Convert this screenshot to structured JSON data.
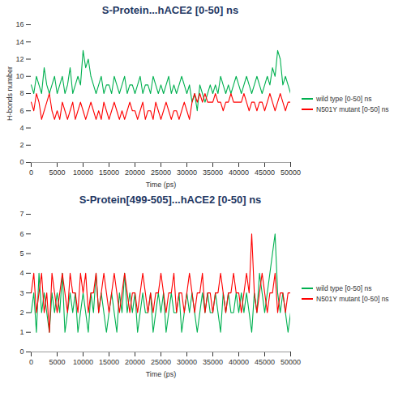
{
  "chart_data": [
    {
      "type": "line",
      "title": "S-Protein...hACE2 [0-50] ns",
      "x_label": "Time (ps)",
      "y_label": "H-bonds number",
      "x": [
        0,
        500,
        1000,
        1500,
        2000,
        2500,
        3000,
        3500,
        4000,
        4500,
        5000,
        5500,
        6000,
        6500,
        7000,
        7500,
        8000,
        8500,
        9000,
        9500,
        10000,
        10500,
        11000,
        11500,
        12000,
        12500,
        13000,
        13500,
        14000,
        14500,
        15000,
        15500,
        16000,
        16500,
        17000,
        17500,
        18000,
        18500,
        19000,
        19500,
        20000,
        20500,
        21000,
        21500,
        22000,
        22500,
        23000,
        23500,
        24000,
        24500,
        25000,
        25500,
        26000,
        26500,
        27000,
        27500,
        28000,
        28500,
        29000,
        29500,
        30000,
        30500,
        31000,
        31500,
        32000,
        32500,
        33000,
        33500,
        34000,
        34500,
        35000,
        35500,
        36000,
        36500,
        37000,
        37500,
        38000,
        38500,
        39000,
        39500,
        40000,
        40500,
        41000,
        41500,
        42000,
        42500,
        43000,
        43500,
        44000,
        44500,
        45000,
        45500,
        46000,
        46500,
        47000,
        47500,
        48000,
        48500,
        49000,
        49500,
        50000
      ],
      "series": [
        {
          "name": "wild type [0-50] ns",
          "color": "#00b050",
          "values": [
            9,
            8,
            10,
            9,
            8,
            11,
            9,
            8,
            9,
            10,
            8,
            9,
            10,
            8,
            9,
            11,
            8,
            9,
            10,
            9,
            13,
            11,
            12,
            10,
            9,
            8,
            9,
            10,
            8,
            9,
            9,
            8,
            10,
            9,
            8,
            9,
            10,
            8,
            9,
            9,
            8,
            9,
            10,
            8,
            9,
            9,
            8,
            10,
            9,
            8,
            9,
            8,
            9,
            10,
            8,
            9,
            8,
            9,
            10,
            9,
            8,
            9,
            7,
            8,
            6,
            9,
            8,
            7,
            8,
            9,
            8,
            9,
            8,
            10,
            9,
            8,
            9,
            8,
            9,
            10,
            9,
            8,
            9,
            10,
            9,
            8,
            9,
            10,
            9,
            8,
            9,
            10,
            9,
            11,
            10,
            13,
            12,
            9,
            10,
            9,
            8
          ]
        },
        {
          "name": "N501Y mutant [0-50] ns",
          "color": "#ff0000",
          "values": [
            7,
            6,
            8,
            7,
            5,
            6,
            7,
            8,
            6,
            5,
            6,
            5,
            7,
            6,
            5,
            6,
            7,
            5,
            6,
            7,
            6,
            5,
            6,
            7,
            6,
            5,
            6,
            5,
            7,
            6,
            5,
            6,
            7,
            6,
            5,
            6,
            5,
            6,
            7,
            6,
            6,
            5,
            6,
            7,
            5,
            6,
            6,
            5,
            7,
            6,
            5,
            6,
            7,
            6,
            5,
            6,
            6,
            5,
            6,
            7,
            6,
            5,
            7,
            8,
            7,
            8,
            7,
            8,
            7,
            7,
            7,
            8,
            7,
            7,
            6,
            7,
            7,
            8,
            7,
            7,
            7,
            7,
            8,
            7,
            6,
            7,
            7,
            6,
            7,
            7,
            6,
            7,
            8,
            7,
            6,
            7,
            8,
            7,
            6,
            7,
            7
          ]
        }
      ],
      "xlim": [
        0,
        50000
      ],
      "xticks": [
        0,
        5000,
        10000,
        15000,
        20000,
        25000,
        30000,
        35000,
        40000,
        45000,
        50000
      ],
      "ylim": [
        0,
        16
      ],
      "yticks": [
        0,
        2,
        4,
        6,
        8,
        10,
        12,
        14,
        16
      ],
      "grid": false,
      "legend": "right"
    },
    {
      "type": "line",
      "title": "S-Protein[499-505]...hACE2 [0-50] ns",
      "x_label": "Time (ps)",
      "x": [
        0,
        500,
        1000,
        1500,
        2000,
        2500,
        3000,
        3500,
        4000,
        4500,
        5000,
        5500,
        6000,
        6500,
        7000,
        7500,
        8000,
        8500,
        9000,
        9500,
        10000,
        10500,
        11000,
        11500,
        12000,
        12500,
        13000,
        13500,
        14000,
        14500,
        15000,
        15500,
        16000,
        16500,
        17000,
        17500,
        18000,
        18500,
        19000,
        19500,
        20000,
        20500,
        21000,
        21500,
        22000,
        22500,
        23000,
        23500,
        24000,
        24500,
        25000,
        25500,
        26000,
        26500,
        27000,
        27500,
        28000,
        28500,
        29000,
        29500,
        30000,
        30500,
        31000,
        31500,
        32000,
        32500,
        33000,
        33500,
        34000,
        34500,
        35000,
        35500,
        36000,
        36500,
        37000,
        37500,
        38000,
        38500,
        39000,
        39500,
        40000,
        40500,
        41000,
        41500,
        42000,
        42500,
        43000,
        43500,
        44000,
        44500,
        45000,
        45500,
        46000,
        46500,
        47000,
        47500,
        48000,
        48500,
        49000,
        49500,
        50000
      ],
      "series": [
        {
          "name": "wild type [0-50] ns",
          "color": "#00b050",
          "values": [
            2,
            3,
            1,
            4,
            2,
            3,
            2,
            1,
            3,
            2,
            3,
            2,
            4,
            1,
            2,
            3,
            2,
            3,
            1,
            2,
            3,
            2,
            1,
            3,
            2,
            4,
            2,
            3,
            2,
            1,
            2,
            3,
            2,
            1,
            3,
            2,
            4,
            2,
            3,
            2,
            3,
            1,
            2,
            3,
            2,
            2,
            3,
            1,
            2,
            3,
            2,
            3,
            1,
            2,
            3,
            2,
            2,
            3,
            1,
            2,
            3,
            2,
            3,
            2,
            1,
            2,
            3,
            2,
            3,
            2,
            2,
            3,
            2,
            1,
            3,
            2,
            3,
            2,
            2,
            3,
            2,
            3,
            2,
            3,
            2,
            1,
            3,
            2,
            4,
            3,
            2,
            3,
            4,
            5,
            6,
            3,
            2,
            3,
            2,
            1,
            2
          ]
        },
        {
          "name": "N501Y mutant [0-50] ns",
          "color": "#ff0000",
          "values": [
            3,
            4,
            2,
            3,
            4,
            2,
            3,
            1,
            4,
            3,
            2,
            3,
            4,
            3,
            2,
            4,
            3,
            3,
            2,
            4,
            3,
            4,
            2,
            3,
            3,
            4,
            2,
            3,
            4,
            3,
            2,
            3,
            4,
            3,
            2,
            3,
            4,
            3,
            2,
            3,
            3,
            2,
            3,
            4,
            3,
            2,
            3,
            2,
            3,
            3,
            4,
            3,
            2,
            3,
            3,
            4,
            2,
            3,
            3,
            2,
            3,
            4,
            3,
            2,
            3,
            3,
            4,
            2,
            3,
            3,
            2,
            3,
            3,
            4,
            3,
            2,
            3,
            3,
            4,
            3,
            3,
            2,
            3,
            4,
            3,
            6,
            3,
            2,
            3,
            4,
            3,
            2,
            3,
            3,
            4,
            2,
            3,
            3,
            2,
            3,
            3
          ]
        }
      ],
      "xlim": [
        0,
        50000
      ],
      "xticks": [
        0,
        5000,
        10000,
        15000,
        20000,
        25000,
        30000,
        35000,
        40000,
        45000,
        50000
      ],
      "ylim": [
        0,
        7
      ],
      "yticks": [
        0,
        1,
        2,
        3,
        4,
        5,
        6,
        7
      ],
      "grid": false,
      "legend": "right"
    }
  ]
}
